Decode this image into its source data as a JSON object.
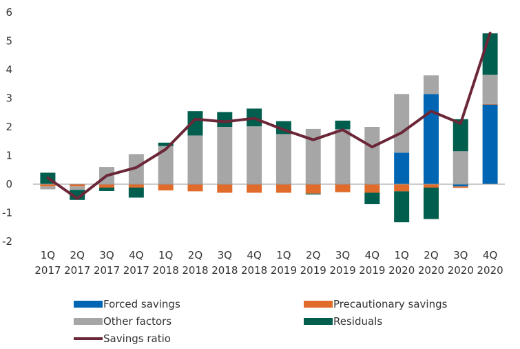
{
  "chart_data": {
    "type": "bar",
    "stacked": true,
    "title": "",
    "xlabel": "",
    "ylabel": "",
    "ylim": [
      -2,
      6
    ],
    "yticks": [
      -2,
      -1,
      0,
      1,
      2,
      3,
      4,
      5,
      6
    ],
    "grid": false,
    "legend_position": "bottom",
    "categories": [
      {
        "q": "1Q",
        "y": "2017"
      },
      {
        "q": "2Q",
        "y": "2017"
      },
      {
        "q": "3Q",
        "y": "2017"
      },
      {
        "q": "4Q",
        "y": "2017"
      },
      {
        "q": "1Q",
        "y": "2018"
      },
      {
        "q": "2Q",
        "y": "2018"
      },
      {
        "q": "3Q",
        "y": "2018"
      },
      {
        "q": "4Q",
        "y": "2018"
      },
      {
        "q": "1Q",
        "y": "2019"
      },
      {
        "q": "2Q",
        "y": "2019"
      },
      {
        "q": "3Q",
        "y": "2019"
      },
      {
        "q": "4Q",
        "y": "2019"
      },
      {
        "q": "1Q",
        "y": "2020"
      },
      {
        "q": "2Q",
        "y": "2020"
      },
      {
        "q": "3Q",
        "y": "2020"
      },
      {
        "q": "4Q",
        "y": "2020"
      }
    ],
    "series": [
      {
        "name": "Forced savings",
        "kind": "bar",
        "color": "#0066b3",
        "values": [
          0,
          0,
          0,
          0,
          0,
          0,
          0,
          0,
          0,
          0,
          0,
          0,
          1.1,
          3.15,
          -0.08,
          2.78
        ]
      },
      {
        "name": "Precautionary savings",
        "kind": "bar",
        "color": "#e06b2a",
        "values": [
          -0.08,
          -0.08,
          -0.12,
          -0.12,
          -0.22,
          -0.25,
          -0.3,
          -0.3,
          -0.3,
          -0.33,
          -0.28,
          -0.3,
          -0.25,
          -0.12,
          -0.05,
          0.02
        ]
      },
      {
        "name": "Other factors",
        "kind": "bar",
        "color": "#a6a6a6",
        "values": [
          -0.1,
          -0.12,
          0.6,
          1.05,
          1.33,
          1.7,
          2.0,
          2.02,
          1.75,
          1.93,
          1.92,
          2.0,
          2.05,
          0.65,
          1.15,
          1.02
        ]
      },
      {
        "name": "Residuals",
        "kind": "bar",
        "color": "#005e4e",
        "values": [
          0.4,
          -0.35,
          -0.12,
          -0.35,
          0.12,
          0.85,
          0.52,
          0.62,
          0.45,
          -0.03,
          0.3,
          -0.4,
          -1.08,
          -1.1,
          1.12,
          1.45
        ]
      },
      {
        "name": "Savings ratio",
        "kind": "line",
        "color": "#6b2737",
        "values": [
          0.22,
          -0.5,
          0.3,
          0.58,
          1.22,
          2.27,
          2.18,
          2.3,
          1.9,
          1.55,
          1.9,
          1.3,
          1.8,
          2.55,
          2.12,
          5.28
        ]
      }
    ],
    "legend": [
      {
        "label": "Forced savings",
        "color": "#0066b3",
        "kind": "bar"
      },
      {
        "label": "Precautionary savings",
        "color": "#e06b2a",
        "kind": "bar"
      },
      {
        "label": "Other factors",
        "color": "#a6a6a6",
        "kind": "bar"
      },
      {
        "label": "Residuals",
        "color": "#005e4e",
        "kind": "bar"
      },
      {
        "label": "Savings ratio",
        "color": "#6b2737",
        "kind": "line"
      }
    ]
  }
}
